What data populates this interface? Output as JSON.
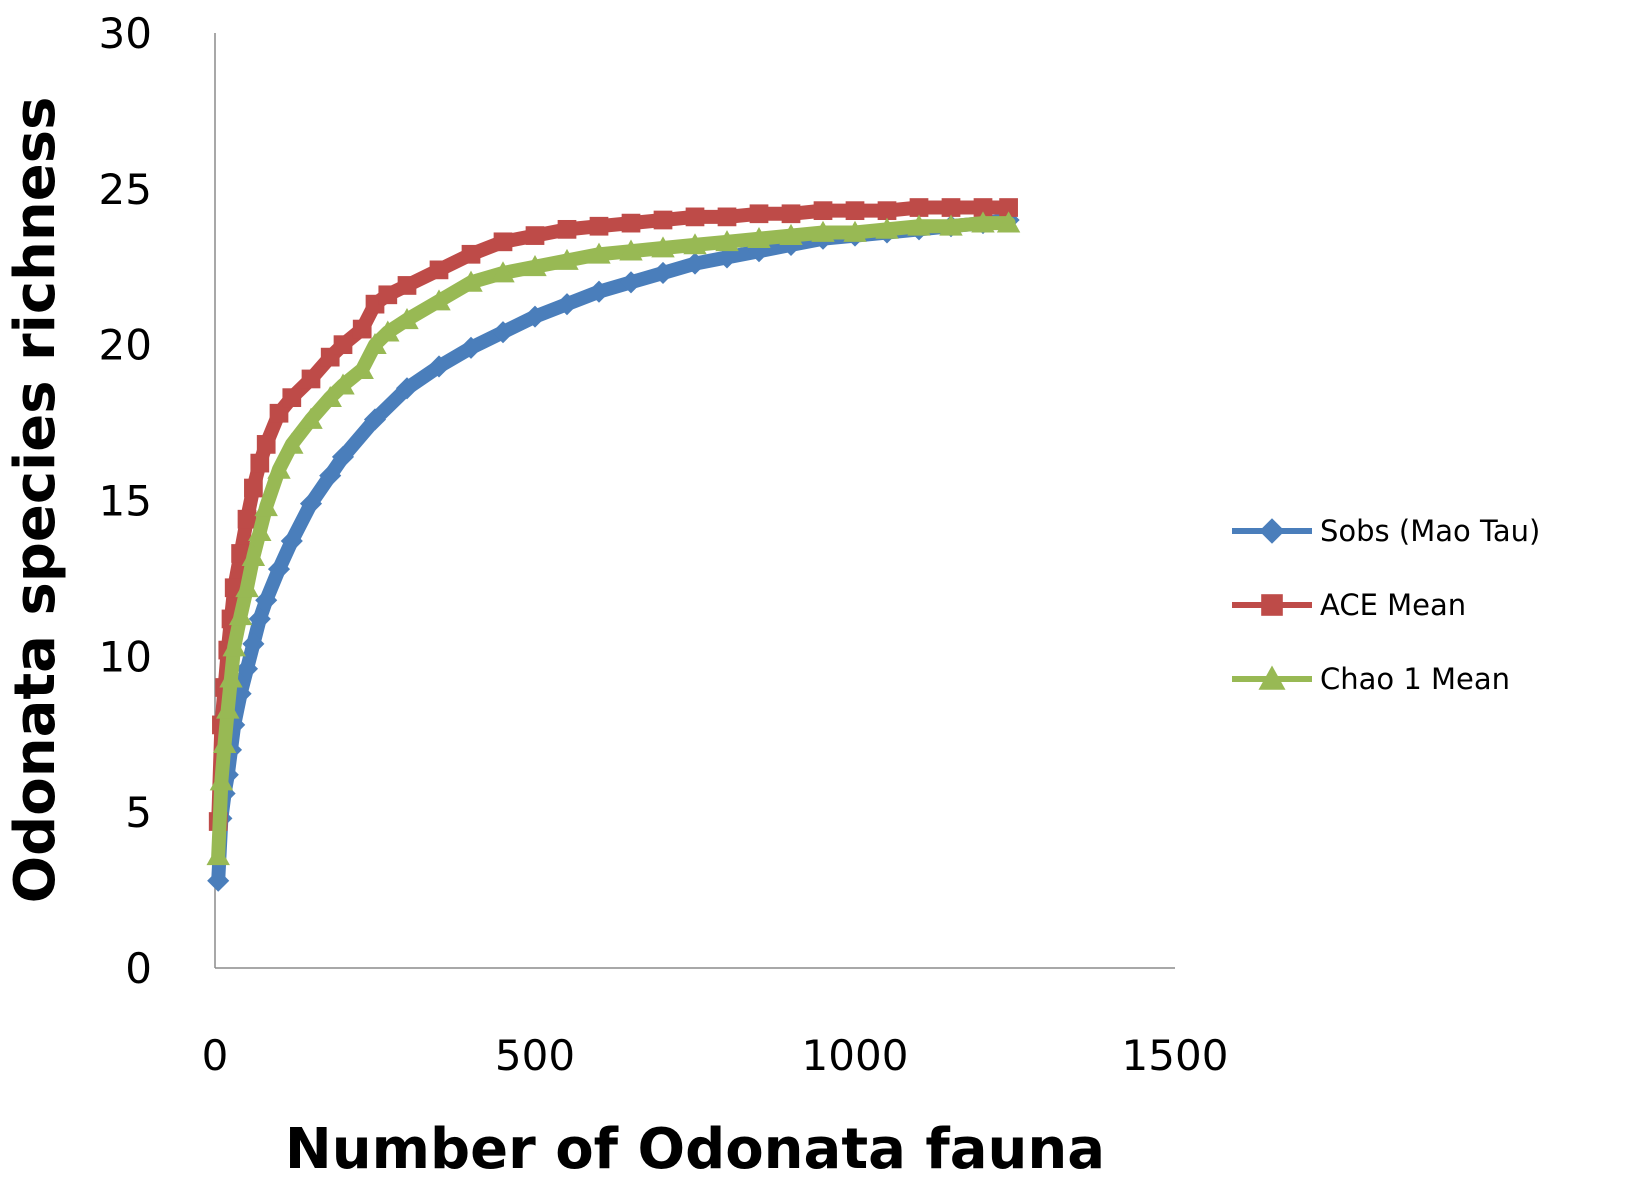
{
  "chart_data": {
    "type": "line",
    "xlabel": "Number of Odonata fauna",
    "ylabel": "Odonata species richness",
    "xlim": [
      0,
      1500
    ],
    "ylim": [
      0,
      30
    ],
    "x_ticks": [
      0,
      500,
      1000,
      1500
    ],
    "y_ticks": [
      0,
      5,
      10,
      15,
      20,
      25,
      30
    ],
    "grid": false,
    "legend_position": "right",
    "series": [
      {
        "name": "Sobs (Mao Tau)",
        "color": "#4a7ebb",
        "marker": "diamond",
        "x": [
          5,
          10,
          15,
          20,
          25,
          30,
          40,
          50,
          60,
          70,
          80,
          100,
          120,
          150,
          180,
          200,
          250,
          300,
          350,
          400,
          450,
          500,
          550,
          600,
          650,
          700,
          750,
          800,
          850,
          900,
          950,
          1000,
          1050,
          1100,
          1150,
          1200,
          1240
        ],
        "y": [
          2.8,
          4.8,
          5.6,
          6.2,
          7.0,
          7.8,
          8.8,
          9.6,
          10.4,
          11.2,
          11.8,
          12.8,
          13.7,
          14.9,
          15.8,
          16.4,
          17.6,
          18.6,
          19.3,
          19.9,
          20.4,
          20.9,
          21.3,
          21.7,
          22.0,
          22.3,
          22.6,
          22.8,
          23.0,
          23.2,
          23.4,
          23.5,
          23.6,
          23.7,
          23.8,
          23.9,
          24.0
        ]
      },
      {
        "name": "ACE Mean",
        "color": "#be4b48",
        "marker": "square",
        "x": [
          5,
          10,
          15,
          20,
          25,
          30,
          40,
          50,
          60,
          70,
          80,
          100,
          120,
          150,
          180,
          200,
          230,
          250,
          270,
          300,
          350,
          400,
          450,
          500,
          550,
          600,
          650,
          700,
          750,
          800,
          850,
          900,
          950,
          1000,
          1050,
          1100,
          1150,
          1200,
          1240
        ],
        "y": [
          4.7,
          7.8,
          9.0,
          10.2,
          11.2,
          12.2,
          13.3,
          14.4,
          15.4,
          16.2,
          16.8,
          17.8,
          18.3,
          18.9,
          19.6,
          20.0,
          20.5,
          21.3,
          21.6,
          21.9,
          22.4,
          22.9,
          23.3,
          23.5,
          23.7,
          23.8,
          23.9,
          24.0,
          24.1,
          24.1,
          24.2,
          24.2,
          24.3,
          24.3,
          24.3,
          24.4,
          24.4,
          24.4,
          24.4
        ]
      },
      {
        "name": "Chao 1 Mean",
        "color": "#98b954",
        "marker": "triangle",
        "x": [
          5,
          10,
          15,
          20,
          25,
          30,
          40,
          50,
          60,
          70,
          80,
          100,
          120,
          150,
          180,
          200,
          230,
          250,
          270,
          300,
          350,
          400,
          450,
          500,
          550,
          600,
          650,
          700,
          750,
          800,
          850,
          900,
          950,
          1000,
          1050,
          1100,
          1150,
          1200,
          1240
        ],
        "y": [
          3.6,
          6.0,
          7.2,
          8.3,
          9.3,
          10.3,
          11.3,
          12.2,
          13.2,
          14.0,
          14.8,
          16.0,
          16.8,
          17.6,
          18.3,
          18.7,
          19.2,
          20.0,
          20.4,
          20.8,
          21.4,
          22.0,
          22.3,
          22.5,
          22.7,
          22.9,
          23.0,
          23.1,
          23.2,
          23.3,
          23.4,
          23.5,
          23.6,
          23.6,
          23.7,
          23.8,
          23.8,
          23.9,
          23.9
        ]
      }
    ]
  }
}
